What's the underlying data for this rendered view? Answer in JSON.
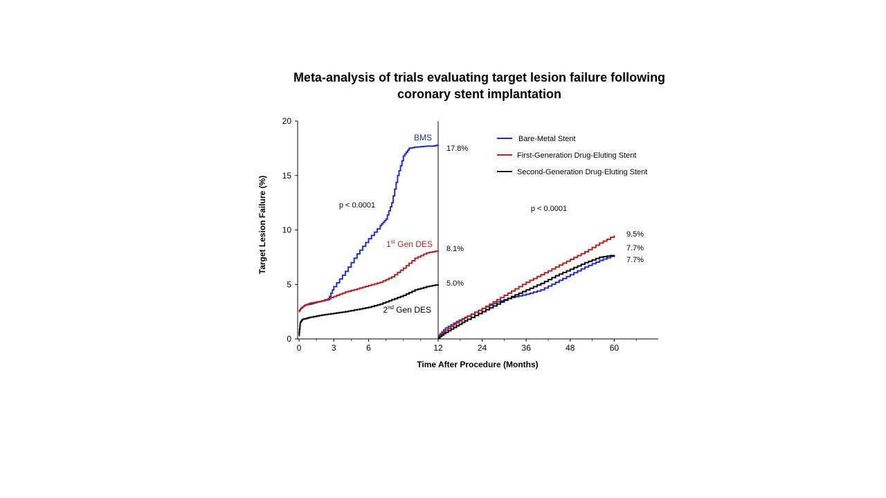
{
  "chart_data": {
    "type": "line",
    "title_line1": "Meta-analysis of trials evaluating target lesion failure following",
    "title_line2": "coronary stent implantation",
    "xlabel": "Time After Procedure (Months)",
    "ylabel": "Target Lesion Failure (%)",
    "ylim": [
      0,
      20
    ],
    "y_ticks": [
      "0",
      "5",
      "10",
      "15",
      "20"
    ],
    "panels": [
      {
        "name": "0-12 months",
        "xlim": [
          0,
          12
        ],
        "x_ticks": [
          "0",
          "3",
          "6",
          "12"
        ],
        "p_value": "p < 0.0001",
        "series": [
          {
            "name": "BMS",
            "label": "BMS",
            "color": "#1f2fc8",
            "x": [
              0,
              0.15,
              0.5,
              1,
              1.5,
              2,
              2.5,
              3,
              4,
              5,
              6,
              7,
              7.5,
              8,
              8.5,
              9,
              9.5,
              10,
              11,
              11.6,
              12
            ],
            "y": [
              2.5,
              2.8,
              3.1,
              3.2,
              3.35,
              3.5,
              3.6,
              4.8,
              6.2,
              7.8,
              9.2,
              10.4,
              11.0,
              12.5,
              15.0,
              16.8,
              17.5,
              17.6,
              17.7,
              17.7,
              17.8
            ],
            "end_label": "17.8%"
          },
          {
            "name": "1st Gen DES",
            "label_main": "1",
            "label_sup": "st",
            "label_rest": " Gen DES",
            "color": "#b22222",
            "x": [
              0,
              0.15,
              0.5,
              1,
              2,
              3,
              4,
              5,
              6,
              7,
              8,
              9,
              10,
              11,
              12
            ],
            "y": [
              2.5,
              2.8,
              3.1,
              3.3,
              3.5,
              3.9,
              4.3,
              4.6,
              4.9,
              5.2,
              5.7,
              6.5,
              7.4,
              7.9,
              8.1
            ],
            "end_label": "8.1%"
          },
          {
            "name": "2nd Gen DES",
            "label_main": "2",
            "label_sup": "nd",
            "label_rest": " Gen DES",
            "color": "#000000",
            "x": [
              0,
              0.1,
              0.3,
              0.7,
              1,
              2,
              3,
              4,
              5,
              6,
              7,
              8,
              9,
              10,
              11,
              12
            ],
            "y": [
              0.3,
              1.5,
              1.8,
              1.9,
              2.0,
              2.2,
              2.35,
              2.5,
              2.7,
              2.9,
              3.2,
              3.6,
              4.0,
              4.5,
              4.8,
              5.0
            ],
            "end_label": "5.0%"
          }
        ]
      },
      {
        "name": "12-60 months",
        "xlim": [
          12,
          72
        ],
        "x_ticks": [
          "24",
          "36",
          "48",
          "60"
        ],
        "p_value": "p < 0.0001",
        "series": [
          {
            "name": "Bare-Metal Stent",
            "color": "#1f2fc8",
            "x": [
              12,
              14,
              17,
              20,
              24,
              28,
              32,
              36,
              40,
              44,
              48,
              52,
              56,
              60
            ],
            "y": [
              0.3,
              1.0,
              1.6,
              2.1,
              2.8,
              3.4,
              3.8,
              4.1,
              4.5,
              5.2,
              5.9,
              6.6,
              7.2,
              7.7
            ],
            "end_label": "7.7%"
          },
          {
            "name": "First-Generation Drug-Eluting Stent",
            "color": "#b22222",
            "x": [
              12,
              14,
              17,
              20,
              24,
              28,
              32,
              36,
              40,
              44,
              48,
              52,
              56,
              60
            ],
            "y": [
              0.2,
              0.8,
              1.5,
              2.1,
              2.8,
              3.6,
              4.4,
              5.2,
              5.9,
              6.6,
              7.3,
              8.0,
              8.8,
              9.5
            ],
            "end_label": "9.5%"
          },
          {
            "name": "Second-Generation Drug-Eluting Stent",
            "color": "#000000",
            "x": [
              12,
              14,
              17,
              20,
              24,
              28,
              32,
              36,
              40,
              44,
              48,
              52,
              56,
              60
            ],
            "y": [
              0.1,
              0.6,
              1.2,
              1.8,
              2.5,
              3.2,
              3.9,
              4.5,
              5.1,
              5.8,
              6.4,
              7.0,
              7.5,
              7.7
            ],
            "end_label": "7.7%"
          }
        ]
      }
    ],
    "legend": {
      "placement": "top-right",
      "entries": [
        {
          "label": "Bare-Metal  Stent",
          "color": "#1f2fc8"
        },
        {
          "label": "First-Generation Drug-Eluting Stent",
          "color": "#b22222"
        },
        {
          "label": "Second-Generation Drug-Eluting Stent",
          "color": "#000000"
        }
      ]
    }
  }
}
